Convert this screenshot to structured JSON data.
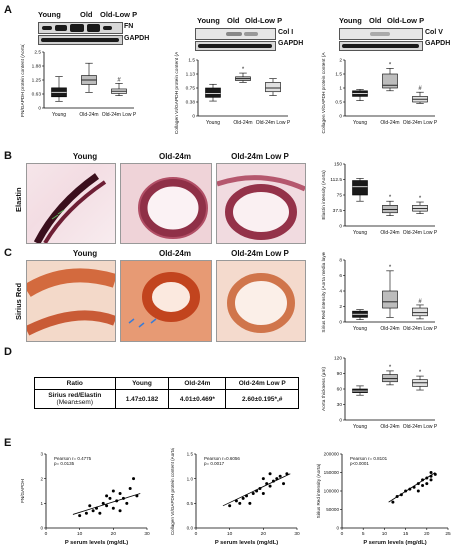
{
  "panels": {
    "A": "A",
    "B": "B",
    "C": "C",
    "D": "D",
    "E": "E"
  },
  "groups": {
    "young": "Young",
    "old": "Old",
    "old_low_p": "Old-Low P"
  },
  "blots": {
    "fn": "FN",
    "gapdh": "GAPDH",
    "col1": "Col I",
    "col5": "Col V"
  },
  "micro_titles": {
    "young": "Young",
    "old": "Old-24m",
    "old_low_p": "Old-24m Low P"
  },
  "row_labels": {
    "elastin": "Elastin",
    "sirius": "Sirius Red"
  },
  "table": {
    "header": [
      "Ratio",
      "Young",
      "Old-24m",
      "Old-24m Low P"
    ],
    "row_label": "Sirius red/Elastin",
    "row_sub": "(Mean±sem)",
    "values": [
      "1.47±0.182",
      "4.01±0.469*",
      "2.60±0.195*,#"
    ]
  },
  "chart_data": [
    {
      "type": "box",
      "ylabel": "FN/GAPDH protein content (Aorta)",
      "categories": [
        "Young",
        "Old-24m",
        "Old-24m Low P"
      ],
      "ylim": [
        0,
        2.5
      ],
      "boxes": [
        {
          "min": 0.3,
          "q1": 0.5,
          "median": 0.7,
          "q3": 0.9,
          "max": 1.4,
          "fill": "#1a1a1a"
        },
        {
          "min": 0.7,
          "q1": 1.05,
          "median": 1.25,
          "q3": 1.45,
          "max": 2.0,
          "fill": "#bdbdbd"
        },
        {
          "min": 0.55,
          "q1": 0.65,
          "median": 0.75,
          "q3": 0.85,
          "max": 1.1,
          "fill": "#e0e0e0",
          "mark": "#"
        }
      ]
    },
    {
      "type": "box",
      "ylabel": "Collagen VI/GAPDH protein content (Aorta)",
      "categories": [
        "Young",
        "Old-24m",
        "Old-24m Low P"
      ],
      "ylim": [
        0,
        1.5
      ],
      "boxes": [
        {
          "min": 0.4,
          "q1": 0.5,
          "median": 0.6,
          "q3": 0.75,
          "max": 0.85,
          "fill": "#1a1a1a"
        },
        {
          "min": 0.9,
          "q1": 0.95,
          "median": 1.0,
          "q3": 1.05,
          "max": 1.15,
          "fill": "#bdbdbd",
          "mark": "*"
        },
        {
          "min": 0.55,
          "q1": 0.65,
          "median": 0.75,
          "q3": 0.9,
          "max": 1.0,
          "fill": "#e0e0e0"
        }
      ]
    },
    {
      "type": "box",
      "ylabel": "Collagen V/GAPDH protein content (Aorta)",
      "categories": [
        "Young",
        "Old-24m",
        "Old-24m Low P"
      ],
      "ylim": [
        0,
        2.0
      ],
      "boxes": [
        {
          "min": 0.55,
          "q1": 0.7,
          "median": 0.8,
          "q3": 0.9,
          "max": 0.95,
          "fill": "#1a1a1a"
        },
        {
          "min": 0.9,
          "q1": 1.0,
          "median": 1.1,
          "q3": 1.5,
          "max": 1.7,
          "fill": "#bdbdbd",
          "mark": "*"
        },
        {
          "min": 0.45,
          "q1": 0.5,
          "median": 0.6,
          "q3": 0.7,
          "max": 0.85,
          "fill": "#e0e0e0",
          "mark": "#"
        }
      ]
    },
    {
      "type": "box",
      "ylabel": "Elastin intensity (Aorta)",
      "categories": [
        "Young",
        "Old-24m",
        "Old-24m Low P"
      ],
      "ylim": [
        0,
        150
      ],
      "boxes": [
        {
          "min": 60,
          "q1": 75,
          "median": 95,
          "q3": 110,
          "max": 115,
          "fill": "#1a1a1a"
        },
        {
          "min": 25,
          "q1": 32,
          "median": 40,
          "q3": 50,
          "max": 60,
          "fill": "#bdbdbd",
          "mark": "*"
        },
        {
          "min": 30,
          "q1": 36,
          "median": 42,
          "q3": 50,
          "max": 58,
          "fill": "#e0e0e0",
          "mark": "*"
        }
      ]
    },
    {
      "type": "box",
      "ylabel": "Sirius Red intensity (Aorta media layer)",
      "categories": [
        "Young",
        "Old-24m",
        "Old-24m Low P"
      ],
      "ylim": [
        0,
        8
      ],
      "boxes": [
        {
          "min": 0.3,
          "q1": 0.6,
          "median": 1.0,
          "q3": 1.4,
          "max": 1.6,
          "fill": "#1a1a1a"
        },
        {
          "min": 0.6,
          "q1": 1.8,
          "median": 2.6,
          "q3": 4.0,
          "max": 6.6,
          "fill": "#bdbdbd",
          "mark": "*"
        },
        {
          "min": 0.4,
          "q1": 0.8,
          "median": 1.2,
          "q3": 1.8,
          "max": 2.2,
          "fill": "#e0e0e0",
          "mark": "#"
        }
      ]
    },
    {
      "type": "box",
      "ylabel": "Aorta thickness (µm)",
      "categories": [
        "Young",
        "Old-24m",
        "Old-24m Low P"
      ],
      "ylim": [
        0,
        120
      ],
      "boxes": [
        {
          "min": 48,
          "q1": 53,
          "median": 56,
          "q3": 60,
          "max": 66,
          "fill": "#1a1a1a"
        },
        {
          "min": 68,
          "q1": 74,
          "median": 80,
          "q3": 88,
          "max": 95,
          "fill": "#bdbdbd",
          "mark": "*"
        },
        {
          "min": 58,
          "q1": 65,
          "median": 72,
          "q3": 78,
          "max": 85,
          "fill": "#e0e0e0",
          "mark": "*"
        }
      ]
    },
    {
      "type": "scatter",
      "xlabel": "P serum levels (mg/dL)",
      "ylabel": "FN/GAPDH",
      "annotation": [
        "Pearson r= 0.4775",
        "p= 0.0135"
      ],
      "xlim": [
        0,
        30
      ],
      "ylim": [
        0,
        3
      ],
      "xticks": [
        "0",
        "10",
        "20",
        "30"
      ],
      "yticks": [
        "0",
        "1",
        "2",
        "3"
      ],
      "points": [
        [
          10,
          0.5
        ],
        [
          12,
          0.6
        ],
        [
          13,
          0.9
        ],
        [
          14,
          0.7
        ],
        [
          15,
          0.8
        ],
        [
          16,
          0.6
        ],
        [
          17,
          1.0
        ],
        [
          18,
          0.9
        ],
        [
          19,
          1.2
        ],
        [
          20,
          0.8
        ],
        [
          21,
          1.1
        ],
        [
          22,
          1.4
        ],
        [
          23,
          1.2
        ],
        [
          24,
          1.0
        ],
        [
          25,
          1.6
        ],
        [
          26,
          2.0
        ],
        [
          27,
          1.3
        ],
        [
          22,
          0.7
        ],
        [
          18,
          1.3
        ],
        [
          20,
          1.5
        ]
      ],
      "fit": [
        [
          8,
          0.55
        ],
        [
          28,
          1.4
        ]
      ]
    },
    {
      "type": "scatter",
      "xlabel": "P serum levels (mg/dL)",
      "ylabel": "Collagen VI/GAPDH protein content (Aorta)",
      "annotation": [
        "Pearson r=0.6056",
        "p= 0.0017"
      ],
      "xlim": [
        0,
        30
      ],
      "ylim": [
        0,
        1.5
      ],
      "xticks": [
        "0",
        "10",
        "20",
        "30"
      ],
      "yticks": [
        "0.0",
        "0.5",
        "1.0",
        "1.5"
      ],
      "points": [
        [
          10,
          0.45
        ],
        [
          12,
          0.55
        ],
        [
          13,
          0.5
        ],
        [
          14,
          0.6
        ],
        [
          15,
          0.65
        ],
        [
          16,
          0.5
        ],
        [
          17,
          0.7
        ],
        [
          18,
          0.75
        ],
        [
          19,
          0.8
        ],
        [
          20,
          0.7
        ],
        [
          21,
          0.9
        ],
        [
          22,
          0.85
        ],
        [
          23,
          0.95
        ],
        [
          24,
          1.0
        ],
        [
          25,
          1.05
        ],
        [
          26,
          0.9
        ],
        [
          27,
          1.1
        ],
        [
          20,
          1.0
        ],
        [
          22,
          1.1
        ]
      ],
      "fit": [
        [
          8,
          0.45
        ],
        [
          28,
          1.1
        ]
      ]
    },
    {
      "type": "scatter",
      "xlabel": "P serum levels (mg/dL)",
      "ylabel": "Sirius Red intensity (Aorta)",
      "annotation": [
        "Pearson r= 0.8101",
        "p<0.0001"
      ],
      "xlim": [
        0,
        25
      ],
      "ylim": [
        0,
        200000
      ],
      "xticks": [
        "0",
        "5",
        "10",
        "15",
        "20",
        "25"
      ],
      "yticks": [
        "0",
        "50000",
        "100000",
        "150000",
        "200000"
      ],
      "points": [
        [
          12,
          70000
        ],
        [
          13,
          85000
        ],
        [
          14,
          90000
        ],
        [
          15,
          100000
        ],
        [
          16,
          105000
        ],
        [
          17,
          110000
        ],
        [
          18,
          120000
        ],
        [
          19,
          130000
        ],
        [
          20,
          135000
        ],
        [
          21,
          140000
        ],
        [
          20,
          120000
        ],
        [
          21,
          150000
        ],
        [
          22,
          145000
        ],
        [
          19,
          115000
        ],
        [
          18,
          100000
        ],
        [
          21,
          130000
        ]
      ],
      "fit": [
        [
          11,
          70000
        ],
        [
          22,
          150000
        ]
      ]
    }
  ]
}
